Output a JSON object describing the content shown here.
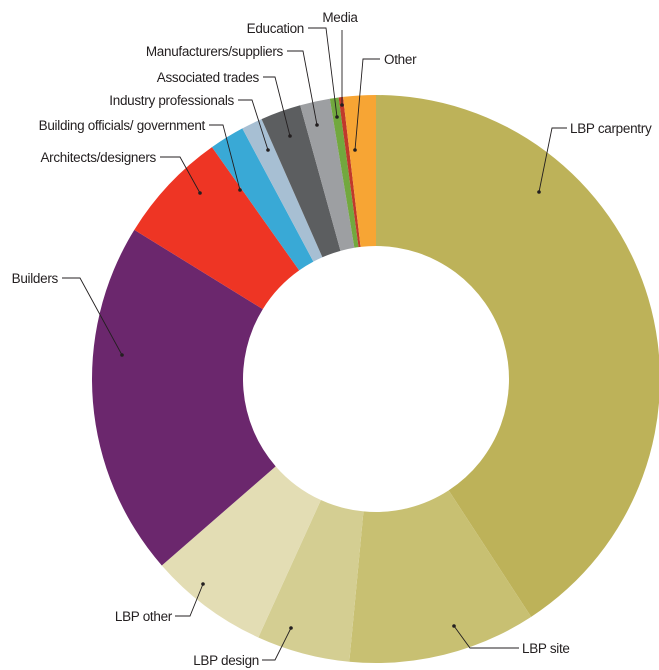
{
  "chart_data": {
    "type": "pie",
    "title": "",
    "donut": true,
    "legend": "none",
    "slices": [
      {
        "label": "LBP carpentry",
        "value": 40.8,
        "color": "#bdb259"
      },
      {
        "label": "LBP site",
        "value": 10.7,
        "color": "#c8c072"
      },
      {
        "label": "LBP design",
        "value": 5.3,
        "color": "#d4ce92"
      },
      {
        "label": "LBP other",
        "value": 6.8,
        "color": "#e3ddb4"
      },
      {
        "label": "Builders",
        "value": 20.2,
        "color": "#6b276d"
      },
      {
        "label": "Architects/designers",
        "value": 6.4,
        "color": "#ee3524"
      },
      {
        "label": "Building officials/ government",
        "value": 2.0,
        "color": "#39a9d6"
      },
      {
        "label": "Industry professionals",
        "value": 1.2,
        "color": "#a7bfd3"
      },
      {
        "label": "Associated trades",
        "value": 2.3,
        "color": "#5c5e60"
      },
      {
        "label": "Manufacturers/suppliers",
        "value": 1.7,
        "color": "#9d9fa2"
      },
      {
        "label": "Education",
        "value": 0.5,
        "color": "#72a83e"
      },
      {
        "label": "Media",
        "value": 0.25,
        "color": "#c0392b"
      },
      {
        "label": "Other",
        "value": 1.85,
        "color": "#f7a534"
      }
    ]
  }
}
